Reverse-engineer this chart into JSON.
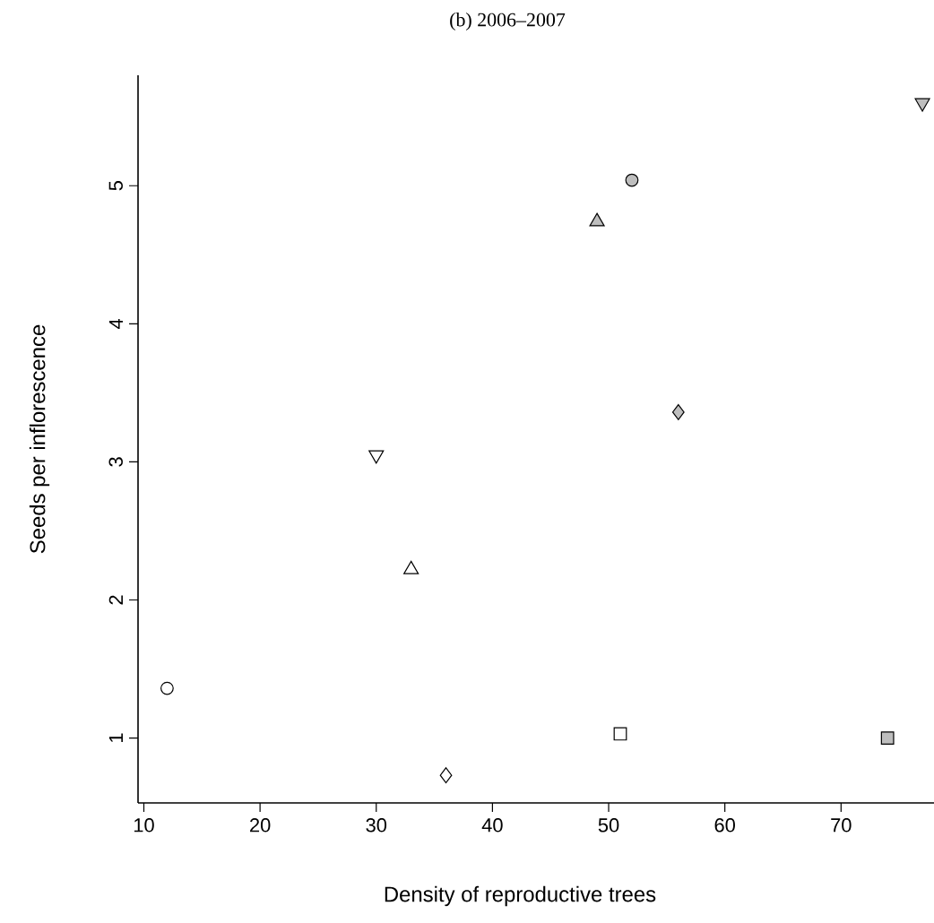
{
  "chart_data": {
    "type": "scatter",
    "title": "(b) 2006–2007",
    "xlabel": "Density of reproductive trees",
    "ylabel": "Seeds per inflorescence",
    "xlim": [
      9.5,
      78
    ],
    "ylim": [
      0.53,
      5.8
    ],
    "xticks": [
      10,
      20,
      30,
      40,
      50,
      60,
      70
    ],
    "yticks": [
      1,
      2,
      3,
      4,
      5
    ],
    "series": [
      {
        "marker": "circle",
        "color": "#ffffff",
        "x": [
          12
        ],
        "values": [
          1.36
        ]
      },
      {
        "marker": "diamond",
        "color": "#ffffff",
        "x": [
          36
        ],
        "values": [
          0.73
        ]
      },
      {
        "marker": "square",
        "color": "#ffffff",
        "x": [
          51
        ],
        "values": [
          1.03
        ]
      },
      {
        "marker": "square",
        "color": "#bebebe",
        "x": [
          74
        ],
        "values": [
          1.0
        ]
      },
      {
        "marker": "triangle",
        "color": "#ffffff",
        "x": [
          33
        ],
        "values": [
          2.22
        ]
      },
      {
        "marker": "triangle-down",
        "color": "#ffffff",
        "x": [
          30
        ],
        "values": [
          3.05
        ]
      },
      {
        "marker": "diamond",
        "color": "#bebebe",
        "x": [
          56
        ],
        "values": [
          3.36
        ]
      },
      {
        "marker": "triangle",
        "color": "#bebebe",
        "x": [
          49
        ],
        "values": [
          4.74
        ]
      },
      {
        "marker": "circle",
        "color": "#bebebe",
        "x": [
          52
        ],
        "values": [
          5.04
        ]
      },
      {
        "marker": "triangle-down",
        "color": "#bebebe",
        "x": [
          77
        ],
        "values": [
          5.6
        ]
      }
    ]
  }
}
